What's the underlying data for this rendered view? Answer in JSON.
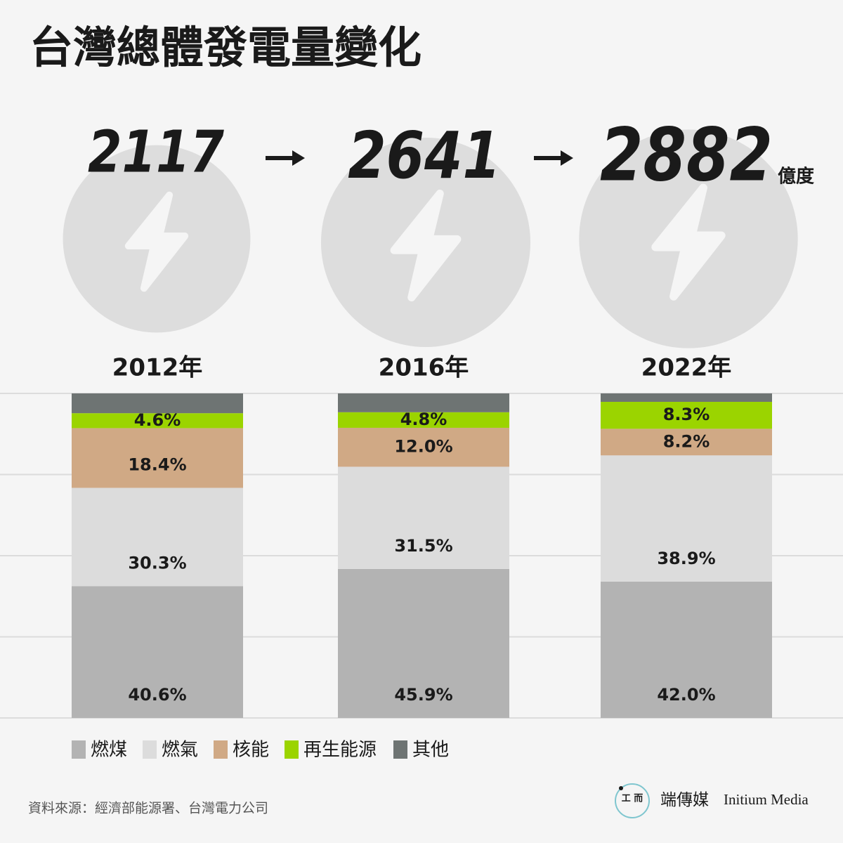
{
  "chart_data": {
    "type": "stacked-bar-100",
    "title": "台灣總體發電量變化",
    "categories": [
      "2012年",
      "2016年",
      "2022年"
    ],
    "totals": [
      2117,
      2641,
      2882
    ],
    "total_unit": "億度",
    "ylim": [
      0,
      100
    ],
    "yticks": [
      0,
      25,
      50,
      75,
      100
    ],
    "grid": true,
    "series": [
      {
        "name": "燃煤",
        "color": "#b3b3b3",
        "values": [
          40.6,
          45.9,
          42.0
        ],
        "value_labels": [
          "40.6%",
          "45.9%",
          "42.0%"
        ]
      },
      {
        "name": "燃氣",
        "color": "#dcdcdc",
        "values": [
          30.3,
          31.5,
          38.9
        ],
        "value_labels": [
          "30.3%",
          "31.5%",
          "38.9%"
        ]
      },
      {
        "name": "核能",
        "color": "#d0a985",
        "values": [
          18.4,
          12.0,
          8.2
        ],
        "value_labels": [
          "18.4%",
          "12.0%",
          "8.2%"
        ]
      },
      {
        "name": "再生能源",
        "color": "#9bd400",
        "values": [
          4.6,
          4.8,
          8.3
        ],
        "value_labels": [
          "4.6%",
          "4.8%",
          "8.3%"
        ]
      },
      {
        "name": "其他",
        "color": "#6e7473",
        "values": [
          6.1,
          5.8,
          2.6
        ]
      }
    ],
    "source": "資料來源：經濟部能源署、台灣電力公司",
    "brand": {
      "chinese": "端傳媒",
      "english": "Initium Media"
    }
  }
}
